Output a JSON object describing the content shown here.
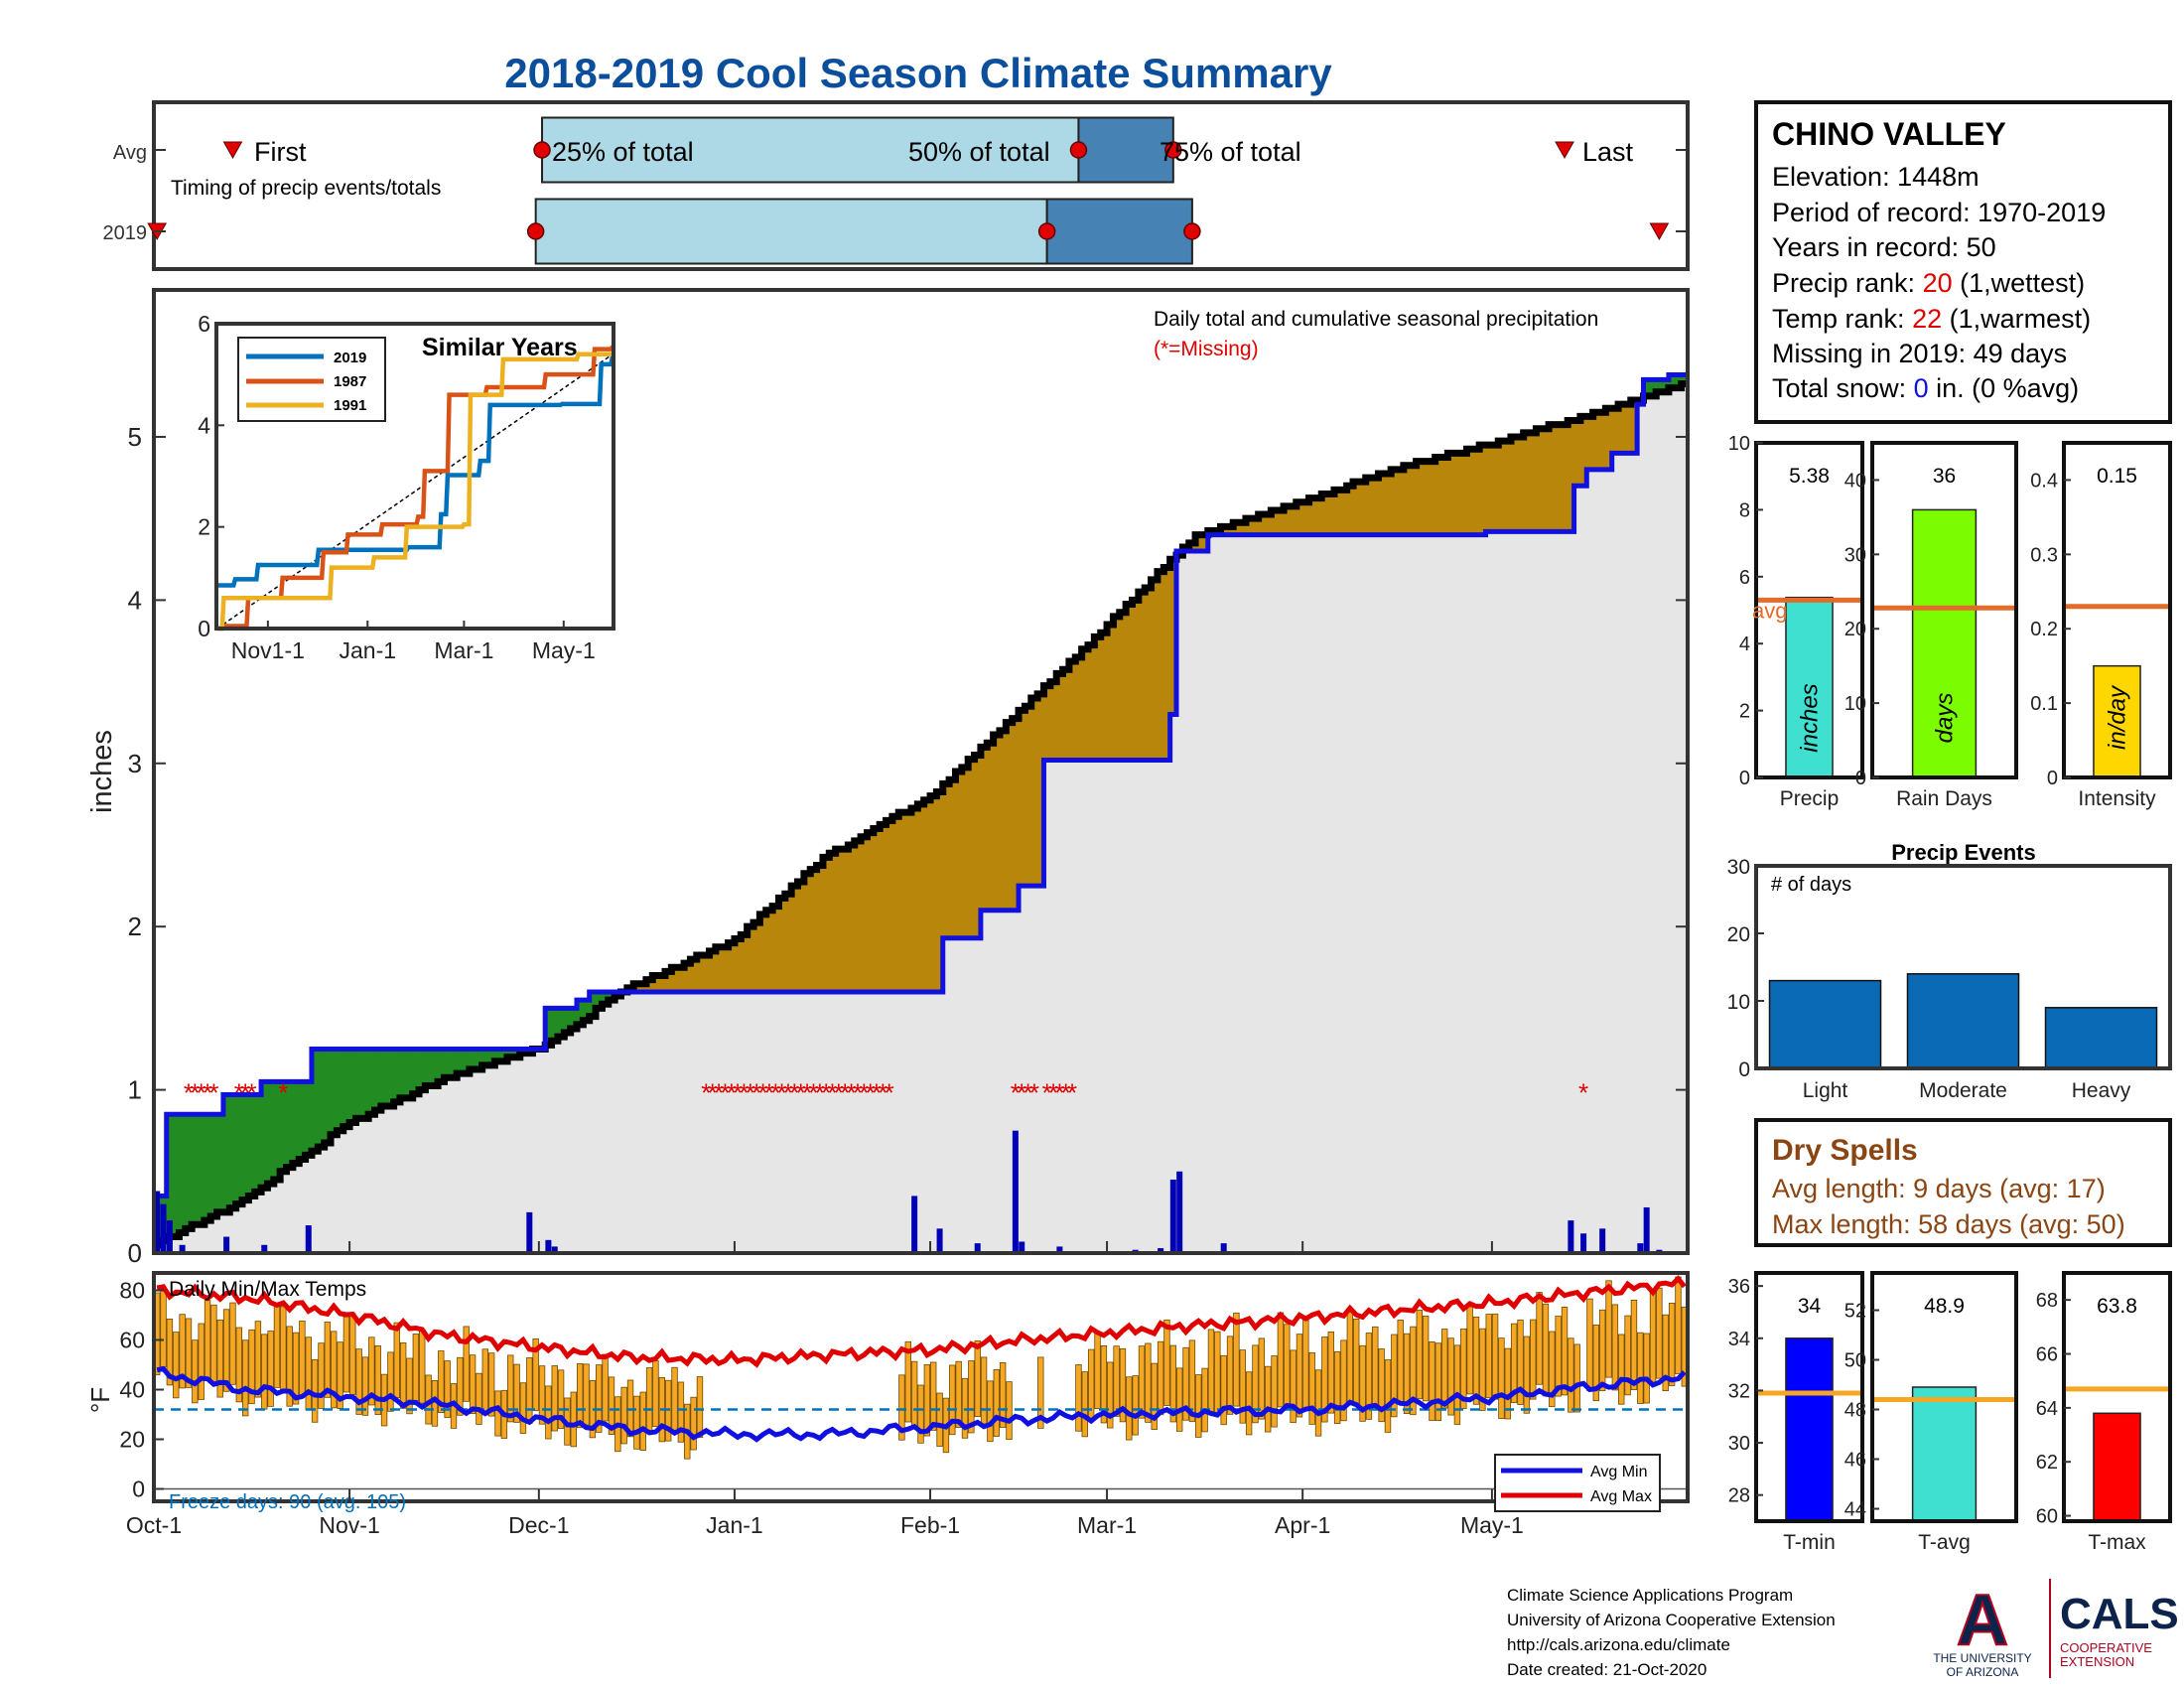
{
  "title": "2018-2019 Cool Season Climate Summary",
  "colors": {
    "title": "#0b4f9c",
    "cumulative_2019": "#1010e0",
    "cumulative_avg": "#000000",
    "above_fill": "#228b22",
    "below_fill": "#b8860b",
    "background_fill": "#e6e6e6",
    "missing": "#e00000",
    "daily_bar": "#0000b4",
    "temp_bar": "#f5a623",
    "avg_min": "#1010e0",
    "avg_max": "#e00000",
    "avg_line": "#e36c2a",
    "tavg_line": "#f5a623",
    "light_blue": "#add8e6",
    "steel_blue": "#4682b4",
    "event_bar": "#0a6ab5",
    "dry_spell_text": "#8b4513"
  },
  "timing": {
    "avg_label": "Avg",
    "year_label": "2019",
    "caption": "Timing of precip events/totals",
    "first_label": "First",
    "last_label": "Last",
    "q25_label": "25% of total",
    "q50_label": "50% of total",
    "q75_label": "75% of total",
    "avg_markers": {
      "first": "Oct-13",
      "q25": "Dec-1",
      "q50": "Feb-24",
      "q75": "Mar-11",
      "last": "May-12"
    },
    "year_markers": {
      "first": "Oct-1",
      "q25": "Nov-30",
      "q50": "Feb-19",
      "q75": "Mar-14",
      "last": "May-27"
    }
  },
  "station": {
    "name": "CHINO VALLEY",
    "elevation_label": "Elevation: 1448m",
    "period_label": "Period of record: 1970-2019",
    "years_label": "Years in record: 50",
    "precip_rank_prefix": "Precip rank: ",
    "precip_rank": "20",
    "precip_rank_suffix": " (1,wettest)",
    "temp_rank_prefix": "Temp rank: ",
    "temp_rank": "22",
    "temp_rank_suffix": " (1,warmest)",
    "missing_label": "Missing in 2019: 49 days",
    "snow_prefix": "Total snow: ",
    "snow_value": "0",
    "snow_suffix": " in. (0 %avg)"
  },
  "main": {
    "ylabel": "inches",
    "annotation": "Daily total and cumulative seasonal precipitation",
    "missing_note": "(*=Missing)",
    "x_ticks": [
      "Oct-1",
      "Nov-1",
      "Dec-1",
      "Jan-1",
      "Feb-1",
      "Mar-1",
      "Apr-1",
      "May-1"
    ],
    "y_ticks": [
      "0",
      "1",
      "2",
      "3",
      "4",
      "5"
    ]
  },
  "inset": {
    "title": "Similar Years",
    "legend": [
      "2019",
      "1987",
      "1991"
    ],
    "x_ticks": [
      "Nov1-1",
      "Jan-1",
      "Mar-1",
      "May-1"
    ],
    "y_ticks": [
      "0",
      "2",
      "4",
      "6"
    ]
  },
  "temps": {
    "label": "Daily Min/Max Temps",
    "ylabel": "°F",
    "freeze_label": "Freeze days: 90 (avg. 105)",
    "legend_min": "Avg Min",
    "legend_max": "Avg Max",
    "y_ticks": [
      "0",
      "20",
      "40",
      "60",
      "80"
    ]
  },
  "summary_bars": {
    "precip": {
      "value_label": "5.38",
      "unit": "inches",
      "xlabel": "Precip",
      "value": 5.38,
      "avg": 5.3,
      "ylim": [
        0,
        10
      ],
      "ticks": [
        "0",
        "2",
        "4",
        "6",
        "8",
        "10"
      ],
      "avg_label": "avg",
      "color": "#40e0d0"
    },
    "rain_days": {
      "value_label": "36",
      "unit": "days",
      "xlabel": "Rain Days",
      "value": 36,
      "avg": 22.8,
      "ylim": [
        0,
        45
      ],
      "ticks": [
        "0",
        "10",
        "20",
        "30",
        "40"
      ],
      "color": "#7cfc00"
    },
    "intensity": {
      "value_label": "0.15",
      "unit": "in/day",
      "xlabel": "Intensity",
      "value": 0.15,
      "avg": 0.23,
      "ylim": [
        0,
        0.45
      ],
      "ticks": [
        "0",
        "0.1",
        "0.2",
        "0.3",
        "0.4"
      ],
      "color": "#ffd700"
    }
  },
  "precip_events": {
    "title": "Precip Events",
    "ylabel": "# of days",
    "categories": [
      "Light",
      "Moderate",
      "Heavy"
    ],
    "values": [
      13,
      14,
      9
    ],
    "ylim": [
      0,
      30
    ],
    "ticks": [
      "0",
      "10",
      "20",
      "30"
    ]
  },
  "dry_spells": {
    "title": "Dry Spells",
    "avg_length": "Avg length: 9 days (avg: 17)",
    "max_length": "Max length: 58 days (avg: 50)"
  },
  "temp_bars": {
    "tmin": {
      "value_label": "34",
      "xlabel": "T-min",
      "value": 34,
      "avg": 31.9,
      "ylim": [
        27,
        36.5
      ],
      "ticks": [
        "28",
        "30",
        "32",
        "34",
        "36"
      ],
      "color": "#0000ff"
    },
    "tavg": {
      "value_label": "48.9",
      "xlabel": "T-avg",
      "value": 48.9,
      "avg": 48.4,
      "ylim": [
        43.5,
        53.5
      ],
      "ticks": [
        "44",
        "46",
        "48",
        "50",
        "52"
      ],
      "color": "#40e0d0"
    },
    "tmax": {
      "value_label": "63.8",
      "xlabel": "T-max",
      "value": 63.8,
      "avg": 64.7,
      "ylim": [
        59.8,
        69
      ],
      "ticks": [
        "60",
        "62",
        "64",
        "66",
        "68"
      ],
      "color": "#ff0000"
    }
  },
  "footer": {
    "line1": "Climate Science Applications Program",
    "line2": "University of Arizona Cooperative Extension",
    "line3": "http://cals.arizona.edu/climate",
    "line4": " Date created: 21-Oct-2020",
    "ua_name": "THE UNIVERSITY OF ARIZONA",
    "cals": "CALS",
    "cals_sub": "COOPERATIVE EXTENSION"
  },
  "chart_data": [
    {
      "type": "area",
      "title": "Daily total and cumulative seasonal precipitation",
      "ylabel": "inches",
      "ylim": [
        0,
        5.9
      ],
      "x_range": [
        "Oct-1",
        "May-31"
      ],
      "series": [
        {
          "name": "2019",
          "x": [
            "Oct-1",
            "Oct-3",
            "Oct-10",
            "Oct-12",
            "Oct-18",
            "Oct-26",
            "Nov-29",
            "Dec-2",
            "Dec-7",
            "Dec-9",
            "Jan-26",
            "Feb-3",
            "Feb-9",
            "Feb-15",
            "Feb-19",
            "Mar-11",
            "Mar-12",
            "Mar-17",
            "Apr-30",
            "May-14",
            "May-16",
            "May-20",
            "May-24",
            "May-25",
            "May-29"
          ],
          "values": [
            0.35,
            0.85,
            0.85,
            0.97,
            1.05,
            1.25,
            1.25,
            1.5,
            1.55,
            1.6,
            1.6,
            1.93,
            2.1,
            2.25,
            3.02,
            3.3,
            4.3,
            4.4,
            4.42,
            4.7,
            4.8,
            4.9,
            5.2,
            5.35,
            5.38
          ]
        },
        {
          "x": [
            "Oct-1",
            "Oct-15",
            "Nov-1",
            "Nov-15",
            "Dec-1",
            "Dec-15",
            "Jan-1",
            "Jan-15",
            "Feb-1",
            "Feb-15",
            "Mar-1",
            "Mar-15",
            "Apr-1",
            "Apr-15",
            "May-1",
            "May-15",
            "May-31"
          ],
          "values": [
            0.05,
            0.32,
            0.8,
            1.05,
            1.25,
            1.62,
            1.92,
            2.42,
            2.8,
            3.32,
            3.85,
            4.4,
            4.6,
            4.8,
            4.96,
            5.12,
            5.32
          ]
        }
      ],
      "daily_precip": {
        "x": [
          "Oct-1",
          "Oct-2",
          "Oct-3",
          "Oct-5",
          "Oct-12",
          "Oct-18",
          "Oct-25",
          "Nov-29",
          "Dec-2",
          "Dec-3",
          "Jan-29",
          "Feb-2",
          "Feb-8",
          "Feb-14",
          "Feb-15",
          "Feb-21",
          "Mar-5",
          "Mar-9",
          "Mar-11",
          "Mar-12",
          "Mar-19",
          "May-13",
          "May-15",
          "May-18",
          "May-24",
          "May-25",
          "May-27"
        ],
        "values": [
          0.38,
          0.3,
          0.2,
          0.05,
          0.1,
          0.05,
          0.17,
          0.25,
          0.08,
          0.04,
          0.35,
          0.15,
          0.06,
          0.75,
          0.07,
          0.04,
          0.02,
          0.03,
          0.45,
          0.5,
          0.06,
          0.2,
          0.12,
          0.15,
          0.06,
          0.28,
          0.02
        ]
      },
      "missing_x": [
        "Oct-6",
        "Oct-7",
        "Oct-8",
        "Oct-9",
        "Oct-10",
        "Oct-14",
        "Oct-15",
        "Oct-16",
        "Oct-21",
        "Dec-27",
        "Dec-28",
        "Dec-29",
        "Dec-30",
        "Dec-31",
        "Jan-1",
        "Jan-2",
        "Jan-3",
        "Jan-4",
        "Jan-5",
        "Jan-6",
        "Jan-7",
        "Jan-8",
        "Jan-9",
        "Jan-10",
        "Jan-11",
        "Jan-12",
        "Jan-13",
        "Jan-14",
        "Jan-15",
        "Jan-16",
        "Jan-17",
        "Jan-18",
        "Jan-19",
        "Jan-20",
        "Jan-21",
        "Jan-22",
        "Jan-23",
        "Jan-24",
        "Jan-25",
        "Feb-14",
        "Feb-15",
        "Feb-16",
        "Feb-17",
        "Feb-19",
        "Feb-20",
        "Feb-21",
        "Feb-22",
        "Feb-23",
        "May-15"
      ]
    },
    {
      "type": "line",
      "title": "Similar Years",
      "x_ticks": [
        "Nov1-1",
        "Jan-1",
        "Mar-1",
        "May-1"
      ],
      "ylim": [
        0,
        6
      ],
      "series": [
        {
          "name": "2019",
          "x": [
            "Oct-1",
            "Oct-12",
            "Oct-26",
            "Dec-2",
            "Jan-26",
            "Feb-15",
            "Feb-19",
            "Mar-11",
            "Mar-17",
            "Apr-30",
            "May-24",
            "May-31"
          ],
          "values": [
            0.85,
            0.97,
            1.25,
            1.55,
            1.6,
            2.25,
            3.02,
            3.3,
            4.4,
            4.42,
            5.2,
            5.38
          ]
        },
        {
          "name": "1987",
          "x": [
            "Oct-1",
            "Oct-5",
            "Oct-20",
            "Nov-10",
            "Dec-5",
            "Dec-20",
            "Jan-10",
            "Feb-1",
            "Feb-5",
            "Feb-20",
            "Mar-15",
            "Apr-20",
            "May-20",
            "May-31"
          ],
          "values": [
            0,
            0.05,
            0.6,
            1.0,
            1.5,
            1.85,
            2.05,
            2.2,
            3.1,
            4.6,
            4.75,
            5.0,
            5.5,
            5.55
          ]
        },
        {
          "name": "1991",
          "x": [
            "Oct-1",
            "Oct-5",
            "Nov-20",
            "Dec-10",
            "Jan-5",
            "Jan-25",
            "Mar-1",
            "Mar-5",
            "Mar-25",
            "Apr-15",
            "May-10",
            "May-31"
          ],
          "values": [
            0,
            0.6,
            0.6,
            1.2,
            1.4,
            2.0,
            2.05,
            4.6,
            5.3,
            5.3,
            5.4,
            5.4
          ]
        }
      ]
    },
    {
      "type": "line",
      "title": "Daily Min/Max Temps",
      "ylabel": "°F",
      "ylim": [
        -5,
        87
      ],
      "series": [
        {
          "name": "Avg Min",
          "x": [
            "Oct-1",
            "Oct-15",
            "Nov-1",
            "Nov-15",
            "Dec-1",
            "Dec-15",
            "Jan-1",
            "Jan-15",
            "Feb-1",
            "Feb-15",
            "Mar-1",
            "Mar-15",
            "Apr-1",
            "Apr-15",
            "May-1",
            "May-15",
            "May-31"
          ],
          "values": [
            47,
            40,
            37,
            34,
            28,
            24,
            22,
            22,
            25,
            28,
            30,
            31,
            32,
            34,
            37,
            41,
            45
          ]
        },
        {
          "name": "Avg Max",
          "x": [
            "Oct-1",
            "Oct-15",
            "Nov-1",
            "Nov-15",
            "Dec-1",
            "Dec-15",
            "Jan-1",
            "Jan-15",
            "Feb-1",
            "Feb-15",
            "Mar-1",
            "Mar-15",
            "Apr-1",
            "Apr-15",
            "May-1",
            "May-15",
            "May-31"
          ],
          "values": [
            80,
            77,
            70,
            62,
            57,
            53,
            52,
            54,
            56,
            60,
            63,
            66,
            69,
            72,
            75,
            79,
            83
          ]
        }
      ],
      "freeze_line": 32
    },
    {
      "type": "bar",
      "title": "Precip Events",
      "categories": [
        "Light",
        "Moderate",
        "Heavy"
      ],
      "values": [
        13,
        14,
        9
      ],
      "ylim": [
        0,
        30
      ]
    }
  ]
}
